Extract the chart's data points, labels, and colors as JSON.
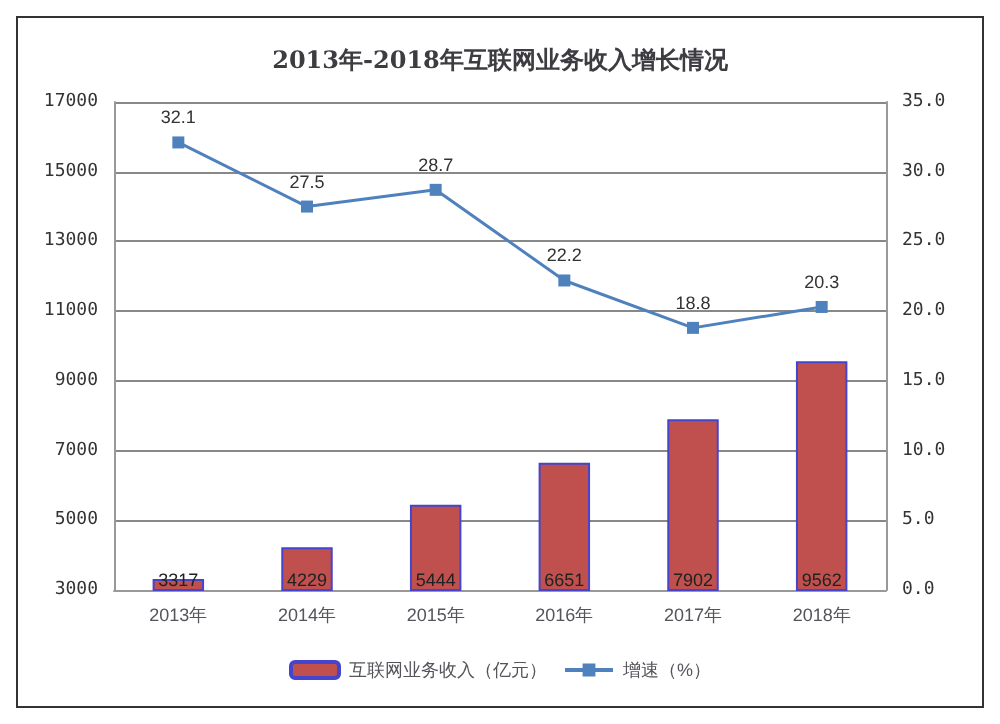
{
  "chart_data": {
    "type": "bar",
    "title": "2013年-2018年互联网业务收入增长情况",
    "categories": [
      "2013年",
      "2014年",
      "2015年",
      "2016年",
      "2017年",
      "2018年"
    ],
    "series": [
      {
        "name": "互联网业务收入（亿元）",
        "color": "#c0504d",
        "values": [
          3317,
          4229,
          5444,
          6651,
          7902,
          9562
        ]
      },
      {
        "name": "增速（%）",
        "type": "line",
        "axis": "y2",
        "color": "#4f81bd",
        "values": [
          32.1,
          27.5,
          28.7,
          22.2,
          18.8,
          20.3
        ]
      }
    ],
    "ylim": [
      3000,
      17000
    ],
    "yticks": [
      3000,
      5000,
      7000,
      9000,
      11000,
      13000,
      15000,
      17000
    ],
    "y2lim": [
      0,
      35
    ],
    "y2ticks": [
      {
        "value": 0,
        "label": "0.0"
      },
      {
        "value": 5,
        "label": "5.0"
      },
      {
        "value": 10,
        "label": "10.0"
      },
      {
        "value": 15,
        "label": "15.0"
      },
      {
        "value": 20,
        "label": "20.0"
      },
      {
        "value": 25,
        "label": "25.0"
      },
      {
        "value": 30,
        "label": "30.0"
      },
      {
        "value": 35,
        "label": "35.0"
      }
    ],
    "grid": "y",
    "legend": "bottom",
    "marker": "square",
    "data_labels": true
  }
}
